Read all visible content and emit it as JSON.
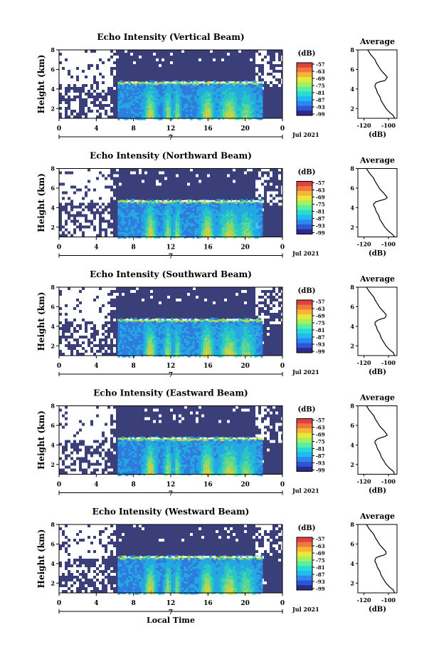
{
  "chart_data": [
    {
      "type": "heatmap",
      "title": "Echo Intensity (Vertical Beam)",
      "xlabel": "",
      "ylabel": "Height (km)",
      "x_ticks": [
        "0",
        "4",
        "8",
        "12",
        "16",
        "20",
        "0"
      ],
      "y_ticks": [
        "2",
        "4",
        "6",
        "8"
      ],
      "xlim": [
        0,
        24
      ],
      "ylim": [
        1,
        8
      ],
      "date_marker": "7",
      "date_label": "Jul 2021",
      "colorbar_unit": "(dB)",
      "colorbar_ticks": [
        "-57",
        "-63",
        "-69",
        "-75",
        "-81",
        "-87",
        "-93",
        "-99"
      ],
      "mean_profile": {
        "title": "Average",
        "xlabel": "(dB)",
        "x_ticks": [
          "-120",
          "-100"
        ],
        "y_ticks": [
          "2",
          "4",
          "6",
          "8"
        ],
        "xlim": [
          -125,
          -93
        ],
        "ylim": [
          1,
          8
        ],
        "x": [
          -95,
          -96,
          -99,
          -102,
          -104,
          -106,
          -107,
          -109,
          -110,
          -111,
          -111,
          -110,
          -107,
          -103,
          -102,
          -101,
          -103,
          -106,
          -108,
          -110,
          -111,
          -113,
          -115,
          -116,
          -117
        ],
        "y": [
          1.0,
          1.3,
          1.6,
          2.0,
          2.4,
          2.8,
          3.2,
          3.6,
          4.0,
          4.2,
          4.4,
          4.6,
          4.75,
          4.85,
          5.0,
          5.2,
          5.5,
          5.9,
          6.3,
          6.7,
          7.0,
          7.3,
          7.6,
          7.8,
          8.0
        ]
      }
    },
    {
      "type": "heatmap",
      "title": "Echo Intensity (Northward Beam)",
      "xlabel": "",
      "ylabel": "Height (km)",
      "x_ticks": [
        "0",
        "4",
        "8",
        "12",
        "16",
        "20",
        "0"
      ],
      "y_ticks": [
        "2",
        "4",
        "6",
        "8"
      ],
      "xlim": [
        0,
        24
      ],
      "ylim": [
        1,
        8
      ],
      "date_marker": "7",
      "date_label": "Jul 2021",
      "colorbar_unit": "(dB)",
      "colorbar_ticks": [
        "-57",
        "-63",
        "-69",
        "-75",
        "-81",
        "-87",
        "-93",
        "-99"
      ],
      "mean_profile": {
        "title": "Average",
        "xlabel": "(dB)",
        "x_ticks": [
          "-120",
          "-100"
        ],
        "y_ticks": [
          "2",
          "4",
          "6",
          "8"
        ],
        "xlim": [
          -125,
          -93
        ],
        "ylim": [
          1,
          8
        ],
        "x": [
          -95,
          -97,
          -100,
          -103,
          -105,
          -107,
          -108,
          -110,
          -111,
          -112,
          -112,
          -110,
          -106,
          -103,
          -101,
          -102,
          -104,
          -107,
          -109,
          -111,
          -112,
          -114,
          -116,
          -117,
          -118
        ],
        "y": [
          1.0,
          1.3,
          1.6,
          2.0,
          2.4,
          2.8,
          3.2,
          3.6,
          4.0,
          4.2,
          4.4,
          4.6,
          4.75,
          4.85,
          5.0,
          5.2,
          5.5,
          5.9,
          6.3,
          6.7,
          7.0,
          7.3,
          7.6,
          7.8,
          8.0
        ]
      }
    },
    {
      "type": "heatmap",
      "title": "Echo Intensity (Southward Beam)",
      "xlabel": "",
      "ylabel": "Height (km)",
      "x_ticks": [
        "0",
        "4",
        "8",
        "12",
        "16",
        "20",
        "0"
      ],
      "y_ticks": [
        "2",
        "4",
        "6",
        "8"
      ],
      "xlim": [
        0,
        24
      ],
      "ylim": [
        1,
        8
      ],
      "date_marker": "7",
      "date_label": "Jul 2021",
      "colorbar_unit": "(dB)",
      "colorbar_ticks": [
        "-57",
        "-63",
        "-69",
        "-75",
        "-81",
        "-87",
        "-93",
        "-99"
      ],
      "mean_profile": {
        "title": "Average",
        "xlabel": "(dB)",
        "x_ticks": [
          "-120",
          "-100"
        ],
        "y_ticks": [
          "2",
          "4",
          "6",
          "8"
        ],
        "xlim": [
          -125,
          -93
        ],
        "ylim": [
          1,
          8
        ],
        "x": [
          -95,
          -96,
          -99,
          -102,
          -104,
          -106,
          -107,
          -109,
          -110,
          -111,
          -111,
          -109,
          -106,
          -103,
          -102,
          -102,
          -104,
          -107,
          -109,
          -111,
          -112,
          -114,
          -116,
          -117,
          -118
        ],
        "y": [
          1.0,
          1.3,
          1.6,
          2.0,
          2.4,
          2.8,
          3.2,
          3.6,
          4.0,
          4.2,
          4.4,
          4.6,
          4.75,
          4.85,
          5.0,
          5.2,
          5.5,
          5.9,
          6.3,
          6.7,
          7.0,
          7.3,
          7.6,
          7.8,
          8.0
        ]
      }
    },
    {
      "type": "heatmap",
      "title": "Echo Intensity (Eastward Beam)",
      "xlabel": "",
      "ylabel": "Height (km)",
      "x_ticks": [
        "0",
        "4",
        "8",
        "12",
        "16",
        "20",
        "0"
      ],
      "y_ticks": [
        "2",
        "4",
        "6",
        "8"
      ],
      "xlim": [
        0,
        24
      ],
      "ylim": [
        1,
        8
      ],
      "date_marker": "7",
      "date_label": "Jul 2021",
      "colorbar_unit": "(dB)",
      "colorbar_ticks": [
        "-57",
        "-63",
        "-69",
        "-75",
        "-81",
        "-87",
        "-93",
        "-99"
      ],
      "mean_profile": {
        "title": "Average",
        "xlabel": "(dB)",
        "x_ticks": [
          "-120",
          "-100"
        ],
        "y_ticks": [
          "2",
          "4",
          "6",
          "8"
        ],
        "xlim": [
          -125,
          -93
        ],
        "ylim": [
          1,
          8
        ],
        "x": [
          -95,
          -96,
          -99,
          -102,
          -104,
          -106,
          -107,
          -109,
          -110,
          -111,
          -111,
          -109,
          -106,
          -103,
          -101,
          -102,
          -104,
          -107,
          -109,
          -111,
          -112,
          -114,
          -116,
          -117,
          -118
        ],
        "y": [
          1.0,
          1.3,
          1.6,
          2.0,
          2.4,
          2.8,
          3.2,
          3.6,
          4.0,
          4.2,
          4.4,
          4.6,
          4.75,
          4.85,
          5.0,
          5.2,
          5.5,
          5.9,
          6.3,
          6.7,
          7.0,
          7.3,
          7.6,
          7.8,
          8.0
        ]
      }
    },
    {
      "type": "heatmap",
      "title": "Echo Intensity (Westward Beam)",
      "xlabel": "Local Time",
      "ylabel": "Height (km)",
      "x_ticks": [
        "0",
        "4",
        "8",
        "12",
        "16",
        "20",
        "0"
      ],
      "y_ticks": [
        "2",
        "4",
        "6",
        "8"
      ],
      "xlim": [
        0,
        24
      ],
      "ylim": [
        1,
        8
      ],
      "date_marker": "7",
      "date_label": "Jul 2021",
      "colorbar_unit": "(dB)",
      "colorbar_ticks": [
        "-57",
        "-63",
        "-69",
        "-75",
        "-81",
        "-87",
        "-93",
        "-99"
      ],
      "mean_profile": {
        "title": "Average",
        "xlabel": "(dB)",
        "x_ticks": [
          "-120",
          "-100"
        ],
        "y_ticks": [
          "2",
          "4",
          "6",
          "8"
        ],
        "xlim": [
          -125,
          -93
        ],
        "ylim": [
          1,
          8
        ],
        "x": [
          -95,
          -96,
          -99,
          -102,
          -104,
          -106,
          -107,
          -109,
          -110,
          -111,
          -111,
          -110,
          -107,
          -104,
          -102,
          -102,
          -104,
          -107,
          -109,
          -111,
          -112,
          -114,
          -116,
          -117,
          -118
        ],
        "y": [
          1.0,
          1.3,
          1.6,
          2.0,
          2.4,
          2.8,
          3.2,
          3.6,
          4.0,
          4.2,
          4.4,
          4.6,
          4.75,
          4.85,
          5.0,
          5.2,
          5.5,
          5.9,
          6.3,
          6.7,
          7.0,
          7.3,
          7.6,
          7.8,
          8.0
        ]
      }
    }
  ],
  "colors": {
    "background_navy": "#3a3f7a",
    "colorbar": [
      "#2c2a8c",
      "#2f55d6",
      "#2e86f0",
      "#22b8f0",
      "#27dcd4",
      "#58f0a0",
      "#a6f060",
      "#e8e83a",
      "#f6b438",
      "#f0783a",
      "#e04040"
    ],
    "colorbar_colors": [
      "#e04040",
      "#f0783a",
      "#f6b438",
      "#e8e83a",
      "#a6f060",
      "#58f0a0",
      "#27dcd4",
      "#22b8f0",
      "#2e86f0",
      "#2f55d6",
      "#2c2a8c"
    ]
  }
}
